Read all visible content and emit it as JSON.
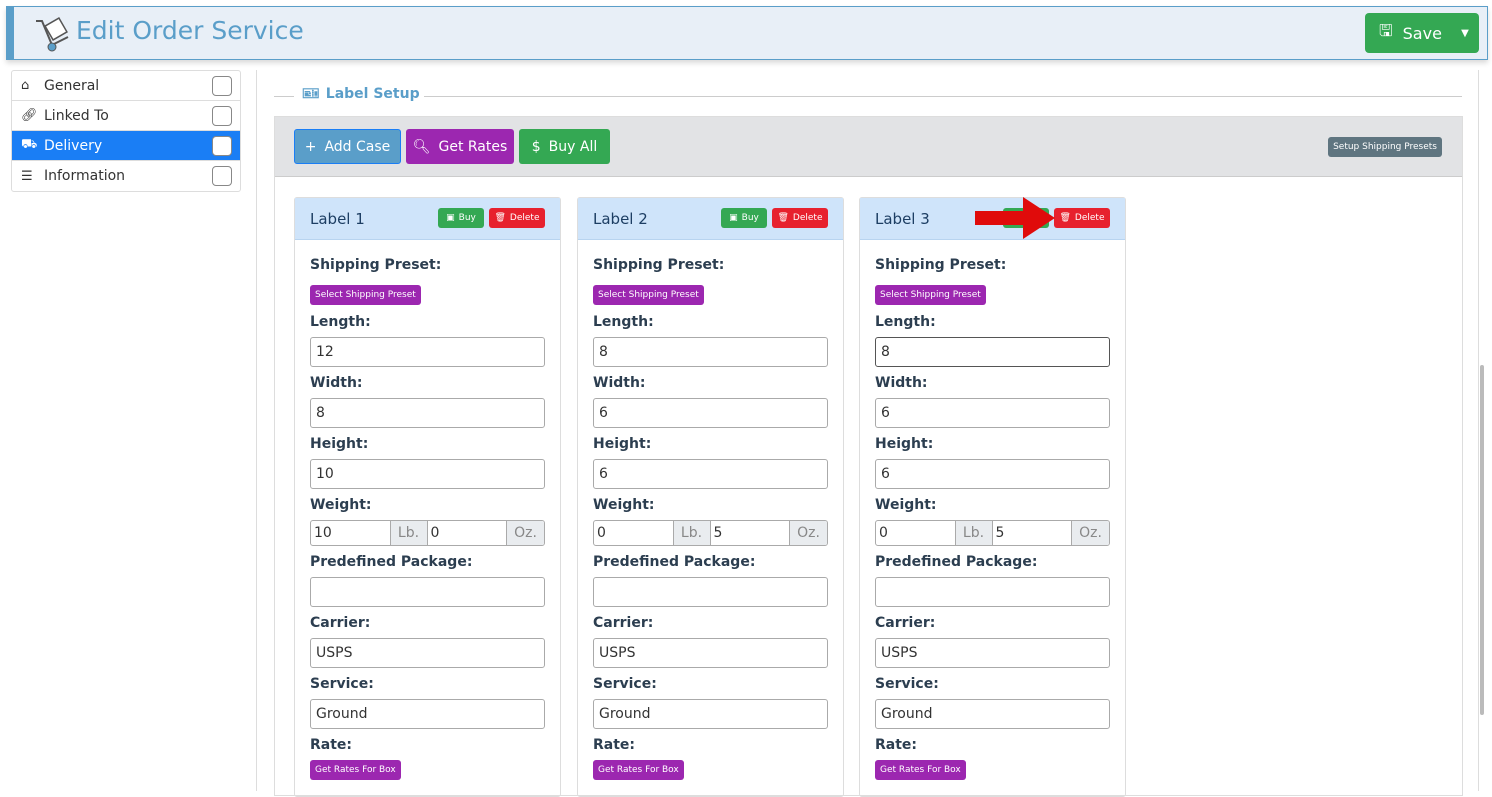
{
  "header": {
    "title": "Edit Order Service",
    "save_label": "Save"
  },
  "sidebar": {
    "items": [
      {
        "label": "General",
        "icon": "home-icon"
      },
      {
        "label": "Linked To",
        "icon": "link-icon"
      },
      {
        "label": "Delivery",
        "icon": "truck-icon",
        "active": true
      },
      {
        "label": "Information",
        "icon": "list-ol-icon"
      }
    ]
  },
  "section": {
    "title": "Label Setup"
  },
  "toolbar": {
    "add_case": "Add Case",
    "get_rates": "Get Rates",
    "buy_all": "Buy All",
    "setup_presets": "Setup Shipping Presets"
  },
  "field_labels": {
    "shipping_preset": "Shipping Preset:",
    "select_preset": "Select Shipping Preset",
    "length": "Length:",
    "width": "Width:",
    "height": "Height:",
    "weight": "Weight:",
    "lb": "Lb.",
    "oz": "Oz.",
    "predefined": "Predefined Package:",
    "carrier": "Carrier:",
    "service": "Service:",
    "rate": "Rate:",
    "get_rates_box": "Get Rates For Box",
    "buy": "Buy",
    "delete": "Delete"
  },
  "labels": [
    {
      "title": "Label 1",
      "length": "12",
      "width": "8",
      "height": "10",
      "weight_lb": "10",
      "weight_oz": "0",
      "predefined": "",
      "carrier": "USPS",
      "service": "Ground"
    },
    {
      "title": "Label 2",
      "length": "8",
      "width": "6",
      "height": "6",
      "weight_lb": "0",
      "weight_oz": "5",
      "predefined": "",
      "carrier": "USPS",
      "service": "Ground"
    },
    {
      "title": "Label 3",
      "length": "8",
      "width": "6",
      "height": "6",
      "weight_lb": "0",
      "weight_oz": "5",
      "predefined": "",
      "carrier": "USPS",
      "service": "Ground"
    }
  ],
  "colors": {
    "accent": "#5a9ec9",
    "active": "#1a7ef5",
    "purple": "#9c27b0",
    "green": "#34a853",
    "red": "#e7212e",
    "annotation_arrow": "#e00b0b"
  }
}
